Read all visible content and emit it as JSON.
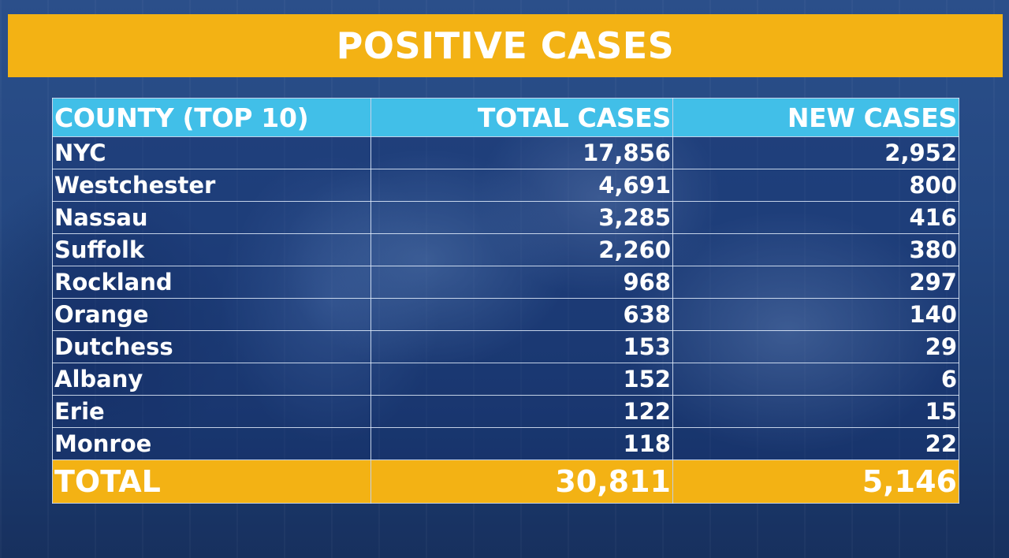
{
  "banner": {
    "title": "POSITIVE CASES"
  },
  "table": {
    "headers": {
      "county": "COUNTY (TOP 10)",
      "total": "TOTAL CASES",
      "new": "NEW CASES"
    },
    "rows": [
      {
        "county": "NYC",
        "total": "17,856",
        "new": "2,952"
      },
      {
        "county": "Westchester",
        "total": "4,691",
        "new": "800"
      },
      {
        "county": "Nassau",
        "total": "3,285",
        "new": "416"
      },
      {
        "county": "Suffolk",
        "total": "2,260",
        "new": "380"
      },
      {
        "county": "Rockland",
        "total": "968",
        "new": "297"
      },
      {
        "county": "Orange",
        "total": "638",
        "new": "140"
      },
      {
        "county": "Dutchess",
        "total": "153",
        "new": "29"
      },
      {
        "county": "Albany",
        "total": "152",
        "new": "6"
      },
      {
        "county": "Erie",
        "total": "122",
        "new": "15"
      },
      {
        "county": "Monroe",
        "total": "118",
        "new": "22"
      }
    ],
    "total_row": {
      "label": "TOTAL",
      "total": "30,811",
      "new": "5,146"
    }
  },
  "colors": {
    "banner": "#f3b214",
    "header": "#41bfe8",
    "total_row": "#f3b214",
    "background": "#1d3f78"
  }
}
